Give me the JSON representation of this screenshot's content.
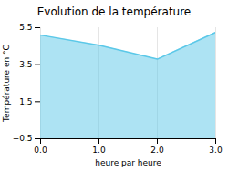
{
  "chart_data": {
    "type": "area",
    "title": "Evolution de la température",
    "xlabel": "heure par heure",
    "ylabel": "Température en °C",
    "x": [
      0,
      1,
      2,
      3
    ],
    "values": [
      5.1,
      4.55,
      3.8,
      5.25
    ],
    "color": "#5bc8e8",
    "xlim": [
      0,
      3
    ],
    "xticks": [
      0,
      1,
      2,
      3
    ],
    "ylim": [
      -0.5,
      5.5
    ],
    "yticks": [
      -0.5,
      1.5,
      3.5,
      5.5
    ],
    "grid": "x"
  }
}
